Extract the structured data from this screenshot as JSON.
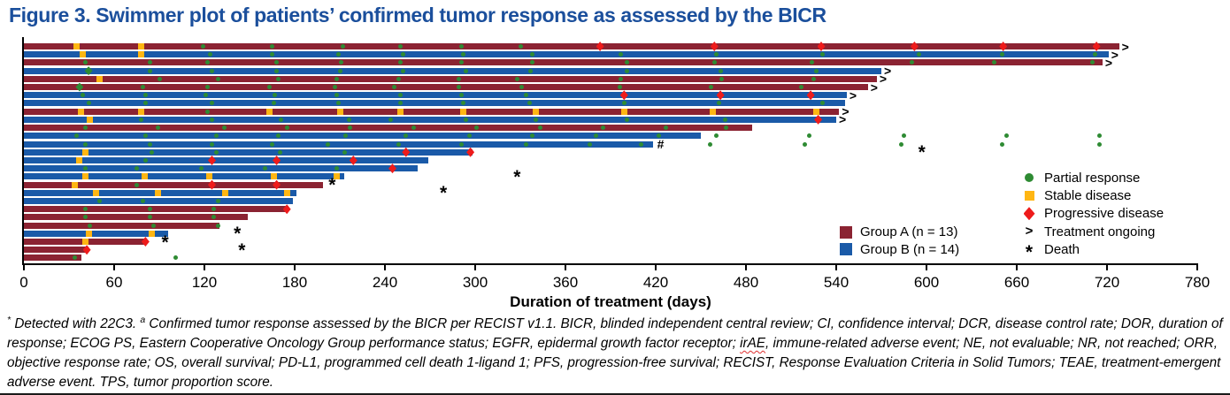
{
  "header": {
    "title": "Figure 3. Swimmer plot of patients’ confirmed tumor response as assessed by the BICR"
  },
  "colors": {
    "title_blue": "#1B4F9C",
    "group_a": "#8B2332",
    "group_b": "#1A5AA8",
    "partial_response": "#2E8B33",
    "stable_disease": "#FFB613",
    "progressive_disease": "#EE1B1B",
    "axis": "#000000"
  },
  "legend": {
    "markers": [
      {
        "label": "Partial response"
      },
      {
        "label": "Stable disease"
      },
      {
        "label": "Progressive disease"
      },
      {
        "label": "Treatment ongoing",
        "symbol": ">"
      },
      {
        "label": "Death",
        "symbol": "*"
      }
    ],
    "groups": [
      {
        "label": "Group A (n = 13)"
      },
      {
        "label": "Group B (n = 14)"
      }
    ]
  },
  "footnote": {
    "sup1": "*",
    "part1": " Detected with 22C3. ",
    "sup2": "a",
    "part2": " Confirmed tumor response assessed by the BICR per RECIST v1.1. BICR, blinded independent central review; CI, confidence interval; DCR, disease control rate; DOR, duration of response; ECOG PS, Eastern Cooperative Oncology Group performance status; EGFR, epidermal growth factor receptor; ",
    "irae": "irAE",
    "part3": ", immune-related adverse event; NE, not evaluable; NR, not reached; ORR, objective response rate; OS, overall survival; PD-L1, programmed cell death 1-ligand 1; PFS, progression-free survival; RECIST, Response Evaluation Criteria in Solid Tumors; TEAE, treatment-emergent adverse event. TPS, tumor proportion score."
  },
  "chart_data": {
    "type": "swimmer-bar",
    "xlabel": "Duration of treatment (days)",
    "xlim": [
      0,
      780
    ],
    "xticks": [
      0,
      60,
      120,
      180,
      240,
      300,
      360,
      420,
      480,
      540,
      600,
      660,
      720,
      780
    ],
    "grid": false,
    "symbols": {
      "ongoing": ">",
      "hash": "#",
      "death": "*"
    },
    "groups": {
      "A": "#8B2332",
      "B": "#1A5AA8"
    },
    "marker_colors": {
      "pr": "#2E8B33",
      "prd": "#2E8B33",
      "sd": "#FFB613",
      "pd": "#EE1B1B"
    },
    "patients": [
      {
        "group": "A",
        "end": 728,
        "ongoing": true,
        "markers": {
          "sd": [
            35,
            78
          ],
          "pr": [
            119,
            165,
            212,
            250,
            291,
            330
          ],
          "pd": [
            383,
            459,
            530,
            592,
            651,
            713
          ]
        }
      },
      {
        "group": "B",
        "end": 721,
        "ongoing": true,
        "markers": {
          "sd": [
            39,
            78
          ],
          "pr": [
            124,
            165,
            209,
            252,
            292,
            338,
            397,
            460,
            531,
            595,
            650,
            712
          ]
        }
      },
      {
        "group": "A",
        "end": 717,
        "ongoing": true,
        "markers": {
          "pr": [
            41,
            84,
            122,
            168,
            211,
            250,
            291,
            338,
            401,
            459,
            524,
            590,
            645,
            710
          ]
        }
      },
      {
        "group": "B",
        "end": 570,
        "ongoing": true,
        "markers": {
          "prd": [
            43
          ],
          "pr": [
            84,
            125,
            168,
            210,
            252,
            294,
            337,
            401,
            463,
            527
          ]
        }
      },
      {
        "group": "A",
        "end": 567,
        "ongoing": true,
        "markers": {
          "sd": [
            50
          ],
          "pr": [
            90,
            129,
            169,
            208,
            249,
            289,
            328,
            397,
            464,
            525
          ]
        }
      },
      {
        "group": "A",
        "end": 561,
        "ongoing": true,
        "markers": {
          "prd": [
            37
          ],
          "pr": [
            79,
            122,
            163,
            207,
            246,
            289,
            331,
            396,
            457,
            517
          ]
        }
      },
      {
        "group": "B",
        "end": 547,
        "ongoing": true,
        "markers": {
          "pr": [
            39,
            81,
            121,
            167,
            208,
            250,
            291,
            334
          ],
          "pd": [
            399,
            463,
            523
          ]
        }
      },
      {
        "group": "B",
        "end": 546,
        "ongoing": false,
        "markers": {
          "pr": [
            43,
            81,
            125,
            166,
            209,
            250,
            292,
            336,
            399,
            462,
            531
          ]
        }
      },
      {
        "group": "A",
        "end": 542,
        "ongoing": true,
        "markers": {
          "sd": [
            38,
            78,
            163,
            210,
            250,
            292,
            340,
            399,
            458,
            527
          ],
          "pr": [
            122
          ]
        }
      },
      {
        "group": "B",
        "end": 540,
        "ongoing": true,
        "markers": {
          "sd": [
            44
          ],
          "pr": [
            78,
            125,
            171,
            216,
            244,
            294,
            340,
            401,
            466
          ],
          "pd": [
            528
          ]
        }
      },
      {
        "group": "A",
        "end": 484,
        "ongoing": false,
        "markers": {
          "pr": [
            41,
            89,
            133,
            175,
            217,
            259,
            301,
            343,
            385,
            427,
            467
          ]
        }
      },
      {
        "group": "B",
        "end": 450,
        "ongoing": false,
        "markers": {
          "pr": [
            35,
            81,
            128,
            169,
            214,
            254,
            296,
            338,
            380,
            422
          ]
        },
        "post_pr": [
          460,
          522,
          585,
          653,
          715
        ]
      },
      {
        "group": "B",
        "end": 418,
        "ongoing": false,
        "hash": true,
        "markers": {
          "pr": [
            41,
            84,
            125,
            165,
            202,
            249,
            291,
            334,
            376,
            410
          ]
        },
        "post_pr": [
          456,
          519,
          583,
          650,
          715
        ]
      },
      {
        "group": "B",
        "end": 298,
        "end_pd": true,
        "markers": {
          "sd": [
            41
          ],
          "pr": [
            85,
            128,
            170,
            213
          ],
          "pd": [
            254
          ]
        },
        "death": 598
      },
      {
        "group": "B",
        "end": 269,
        "ongoing": false,
        "markers": {
          "sd": [
            37
          ],
          "pr": [
            81
          ],
          "pd": [
            125,
            168,
            219
          ]
        }
      },
      {
        "group": "B",
        "end": 262,
        "ongoing": false,
        "markers": {
          "pr": [
            41,
            75,
            118,
            160,
            208
          ],
          "pd": [
            245
          ]
        }
      },
      {
        "group": "B",
        "end": 213,
        "ongoing": false,
        "markers": {
          "sd": [
            41,
            80,
            123,
            166,
            208
          ]
        },
        "death": 329
      },
      {
        "group": "A",
        "end": 199,
        "ongoing": false,
        "markers": {
          "sd": [
            34
          ],
          "pr": [
            75
          ],
          "pd": [
            125,
            168
          ]
        },
        "death": 206
      },
      {
        "group": "B",
        "end": 181,
        "ongoing": false,
        "markers": {
          "sd": [
            48,
            89,
            134,
            175
          ]
        },
        "death": 280
      },
      {
        "group": "B",
        "end": 179,
        "ongoing": false,
        "markers": {
          "pr": [
            50,
            79,
            129
          ]
        }
      },
      {
        "group": "A",
        "end": 176,
        "end_pd": true,
        "markers": {
          "pr": [
            41,
            84,
            126
          ]
        }
      },
      {
        "group": "A",
        "end": 149,
        "ongoing": false,
        "markers": {
          "pr": [
            41,
            84,
            126
          ]
        }
      },
      {
        "group": "A",
        "end": 130,
        "ongoing": false,
        "markers": {
          "pr": [
            44,
            86,
            129
          ]
        }
      },
      {
        "group": "B",
        "end": 96,
        "ongoing": false,
        "markers": {
          "sd": [
            43,
            85
          ]
        },
        "death": 143
      },
      {
        "group": "A",
        "end": 82,
        "end_pd": true,
        "markers": {
          "sd": [
            41
          ]
        },
        "death": 95
      },
      {
        "group": "A",
        "end": 43,
        "end_pd": true,
        "markers": {},
        "death": 146
      },
      {
        "group": "A",
        "end": 38,
        "ongoing": false,
        "markers": {
          "pr": [
            34
          ]
        },
        "post_pr": [
          101
        ]
      }
    ]
  }
}
